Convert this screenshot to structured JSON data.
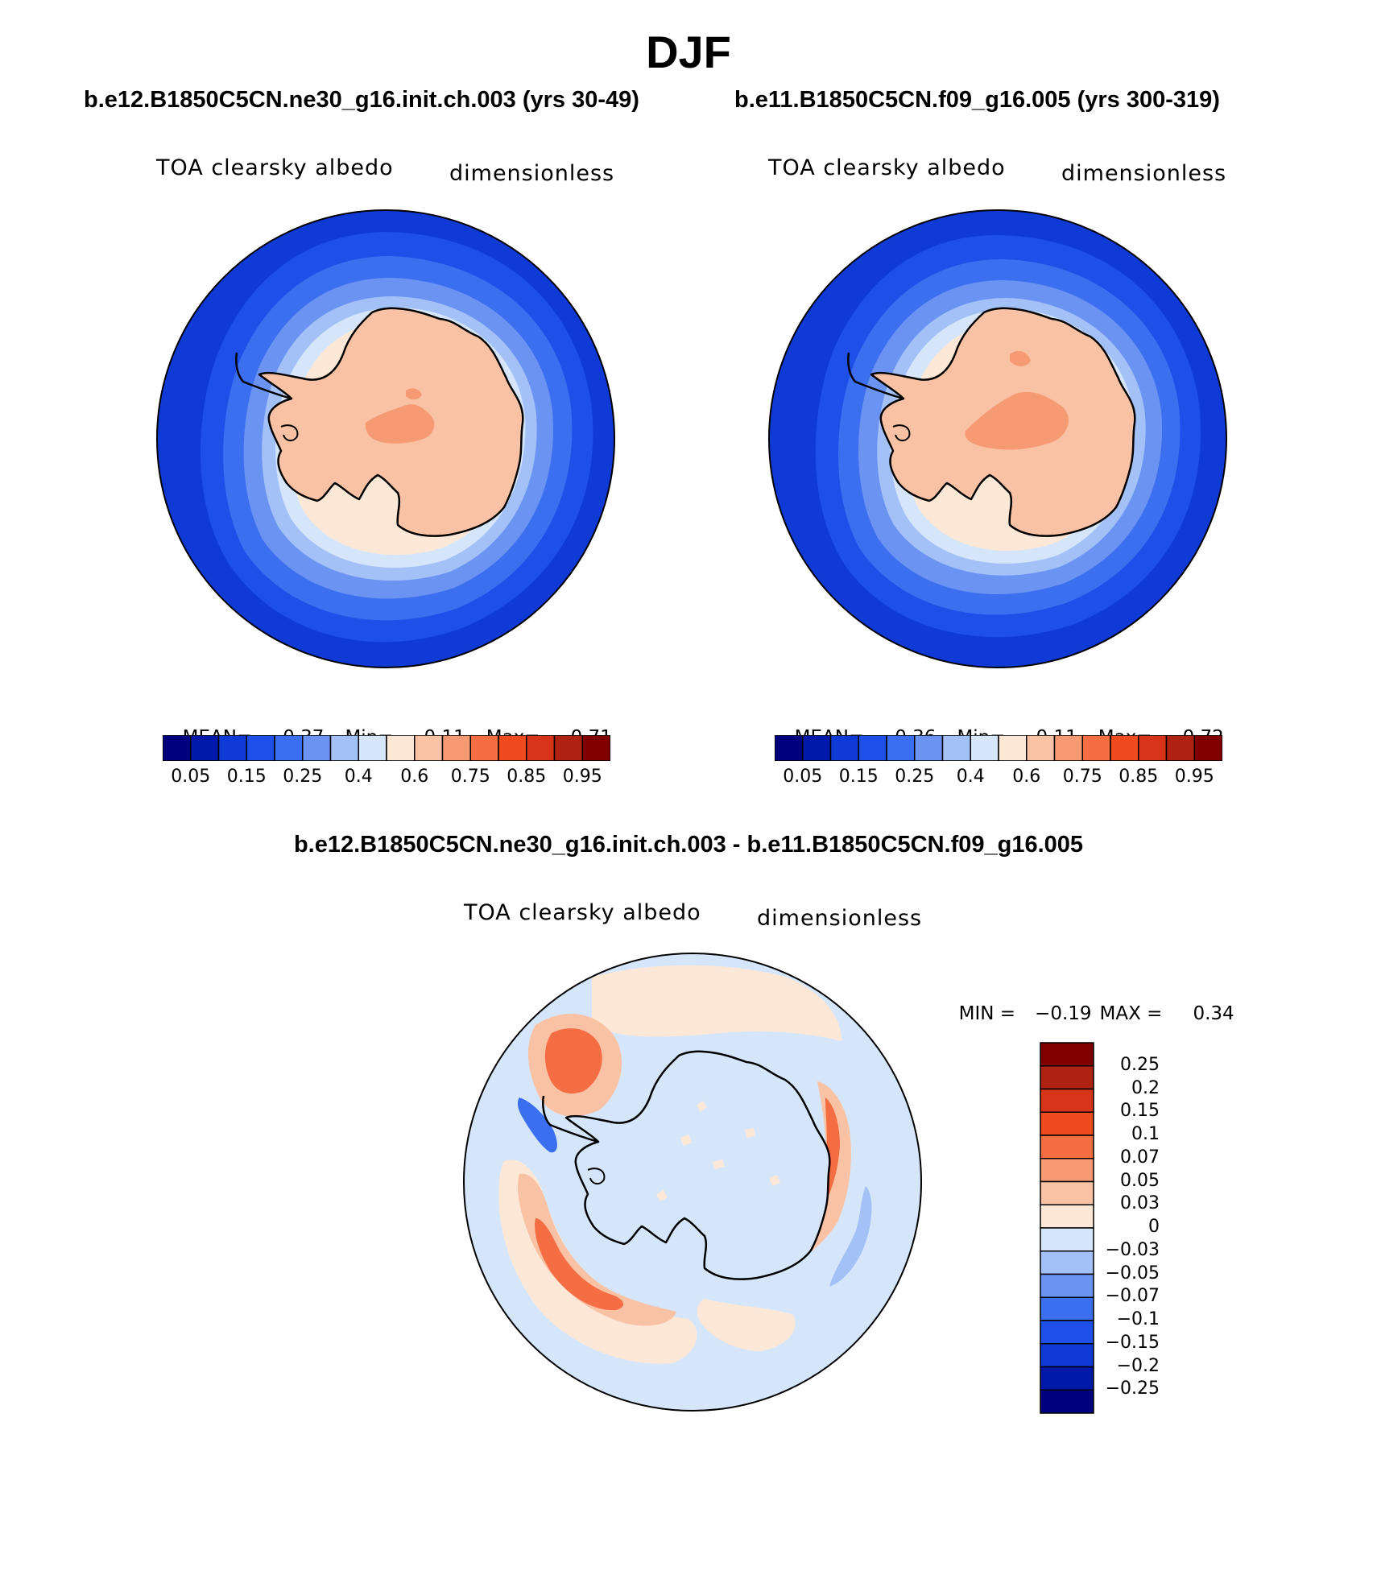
{
  "figure": {
    "title": "DJF"
  },
  "panels": {
    "left": {
      "case": "b.e12.B1850C5CN.ne30_g16.init.ch.003 (yrs 30-49)",
      "variable": "TOA clearsky albedo",
      "units": "dimensionless",
      "mean_label": "MEAN=",
      "mean": "0.37",
      "min_label": "Min=",
      "min": "0.11",
      "max_label": "Max=",
      "max": "0.71"
    },
    "right": {
      "case": "b.e11.B1850C5CN.f09_g16.005 (yrs 300-319)",
      "variable": "TOA clearsky albedo",
      "units": "dimensionless",
      "mean_label": "MEAN=",
      "mean": "0.36",
      "min_label": "Min=",
      "min": "0.11",
      "max_label": "Max=",
      "max": "0.72"
    },
    "diff": {
      "case": "b.e12.B1850C5CN.ne30_g16.init.ch.003 - b.e11.B1850C5CN.f09_g16.005",
      "variable": "TOA clearsky albedo",
      "units": "dimensionless",
      "min_label": "MIN =",
      "min": "−0.19",
      "max_label": "MAX =",
      "max": "0.34"
    }
  },
  "colorbars": {
    "abs_colors": [
      "#00007f",
      "#0019a8",
      "#0f3ad6",
      "#1e4fe8",
      "#3c6ef0",
      "#6a93f2",
      "#a4c1f7",
      "#d5e6fb",
      "#fde8d8",
      "#f9c2a4",
      "#f69a74",
      "#f46d43",
      "#f04a1f",
      "#d8341a",
      "#b02312",
      "#800000"
    ],
    "abs_labels": [
      "0.05",
      "0.15",
      "0.25",
      "0.4",
      "0.6",
      "0.75",
      "0.85",
      "0.95"
    ],
    "diff_colors": [
      "#00007f",
      "#0019a8",
      "#0f3ad6",
      "#1e4fe8",
      "#3c6ef0",
      "#6a93f2",
      "#a4c1f7",
      "#d5e6fb",
      "#fde8d8",
      "#f9c2a4",
      "#f69a74",
      "#f46d43",
      "#f04a1f",
      "#d8341a",
      "#b02312",
      "#800000"
    ],
    "diff_labels": [
      "0.25",
      "0.2",
      "0.15",
      "0.1",
      "0.07",
      "0.05",
      "0.03",
      "0",
      "−0.03",
      "−0.05",
      "−0.07",
      "−0.1",
      "−0.15",
      "−0.2",
      "−0.25"
    ]
  },
  "map_colors": {
    "ocean_deep": "#0f3ad6",
    "ring_1": "#1e4fe8",
    "ring_2": "#3c6ef0",
    "ring_3": "#6a93f2",
    "ring_4": "#a4c1f7",
    "ring_5": "#d5e6fb",
    "ice_shelf": "#fde8d8",
    "antarctica": "#f9c2a4",
    "plateau": "#f69a74",
    "diff_background": "#d5e6fb",
    "diff_pos_light": "#fde8d8",
    "diff_pos_mid": "#f9c2a4",
    "diff_pos_strong": "#f46d43",
    "diff_neg": "#3c6ef0"
  }
}
